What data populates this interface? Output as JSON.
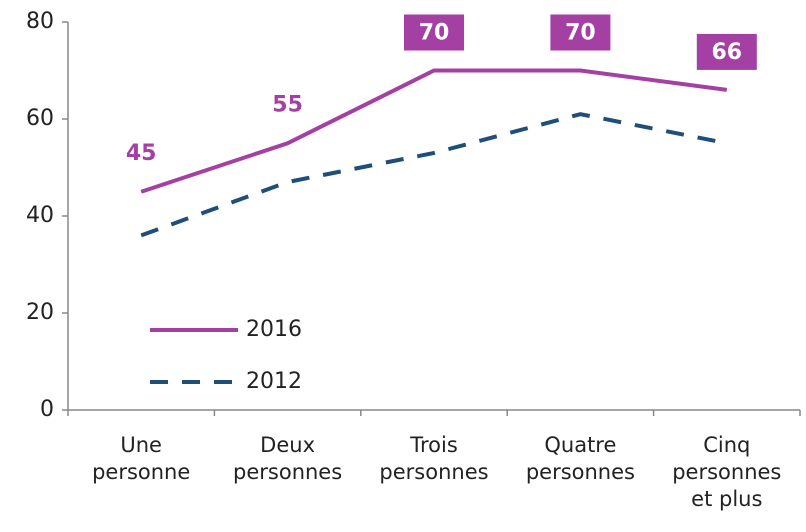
{
  "chart_data": {
    "type": "line",
    "categories": [
      "Une personne",
      "Deux personnes",
      "Trois personnes",
      "Quatre personnes",
      "Cinq personnes et plus"
    ],
    "series": [
      {
        "name": "2016",
        "color": "#a43fa3",
        "values": [
          45,
          55,
          70,
          70,
          66
        ]
      },
      {
        "name": "2012",
        "color": "#1f4e79",
        "values": [
          36,
          47,
          53,
          61,
          55
        ],
        "dashed": true
      }
    ],
    "ylim": [
      0,
      80
    ],
    "yticks": [
      0,
      20,
      40,
      60,
      80
    ],
    "legend": "lower left"
  }
}
